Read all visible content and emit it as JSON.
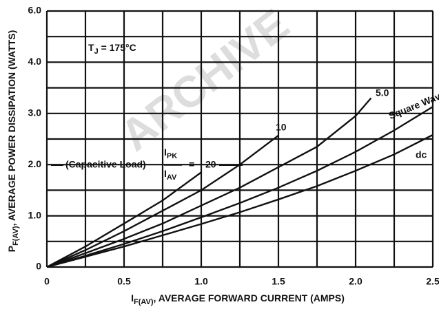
{
  "chart_data": {
    "type": "line",
    "watermark": "ARCHIVE",
    "y_label": [
      "P",
      "F(AV)",
      ", AVERAGE POWER DISSIPATION (WATTS)"
    ],
    "x_label": [
      "I",
      "F(AV)",
      ", AVERAGE FORWARD CURRENT (AMPS)"
    ],
    "annotation_tj": [
      "T",
      "J",
      " = 175°C"
    ],
    "annotation_load": [
      "(Capacitive Load)",
      "I",
      "PK",
      "I",
      "AV",
      "="
    ],
    "y_top_label": "6.0",
    "xlim": [
      0,
      2.5
    ],
    "ylim": [
      0,
      5
    ],
    "xticks": [
      0,
      0.5,
      {
        "value": 1,
        "label": "1.0"
      },
      1.5,
      {
        "value": 2,
        "label": "2.0"
      },
      2.5
    ],
    "yticks": [
      0,
      {
        "value": 1,
        "label": "1.0"
      },
      {
        "value": 2,
        "label": "2.0"
      },
      {
        "value": 3,
        "label": "3.0"
      },
      {
        "value": 4,
        "label": "4.0"
      }
    ],
    "x_minor_grid": [
      0.25,
      0.75,
      1.25,
      1.75,
      2.25
    ],
    "y_minor_grid": [
      0.5,
      1.5,
      2.5,
      3.5,
      4.5,
      5
    ],
    "grid": true,
    "series": [
      {
        "name": "20",
        "color": "#111111",
        "x": [
          0,
          0.25,
          0.5,
          0.75,
          1.0
        ],
        "values": [
          0,
          0.4,
          0.85,
          1.3,
          1.85
        ]
      },
      {
        "name": "10",
        "color": "#111111",
        "x": [
          0,
          0.25,
          0.5,
          0.75,
          1.0,
          1.25,
          1.5
        ],
        "values": [
          0,
          0.33,
          0.7,
          1.1,
          1.5,
          2.0,
          2.57
        ]
      },
      {
        "name": "5.0",
        "color": "#111111",
        "x": [
          0,
          0.25,
          0.5,
          0.75,
          1.0,
          1.25,
          1.5,
          1.75,
          2.0,
          2.1
        ],
        "values": [
          0,
          0.27,
          0.55,
          0.85,
          1.2,
          1.55,
          1.95,
          2.35,
          2.95,
          3.3
        ]
      },
      {
        "name": "Square Wave",
        "color": "#111111",
        "x": [
          0,
          0.25,
          0.5,
          0.75,
          1.0,
          1.25,
          1.5,
          1.75,
          2.0,
          2.25,
          2.5
        ],
        "values": [
          0,
          0.22,
          0.45,
          0.7,
          0.97,
          1.25,
          1.55,
          1.88,
          2.25,
          2.67,
          3.13
        ]
      },
      {
        "name": "dc",
        "color": "#111111",
        "x": [
          0,
          0.25,
          0.5,
          0.75,
          1.0,
          1.25,
          1.5,
          1.75,
          2.0,
          2.25,
          2.5
        ],
        "values": [
          0,
          0.2,
          0.4,
          0.62,
          0.84,
          1.07,
          1.32,
          1.58,
          1.88,
          2.2,
          2.58
        ]
      }
    ]
  }
}
